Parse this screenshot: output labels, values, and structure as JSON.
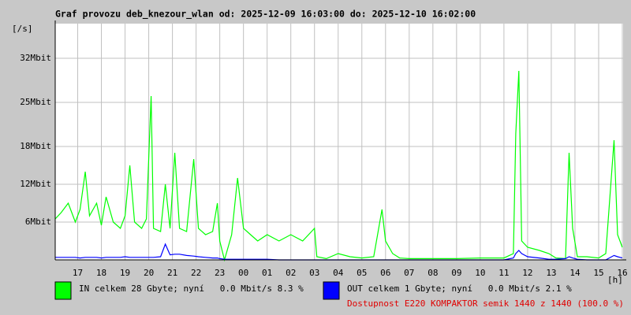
{
  "chart_data": {
    "type": "line",
    "title": "Graf provozu deb_knezour_wlan od: 2025-12-09 16:03:00 do: 2025-12-10 16:02:00",
    "y_label": "[/s]",
    "x_label": "[h]",
    "ylim": [
      0,
      37.5
    ],
    "yticks": [
      {
        "value": 6,
        "label": "6Mbit"
      },
      {
        "value": 12,
        "label": "12Mbit"
      },
      {
        "value": 18,
        "label": "18Mbit"
      },
      {
        "value": 25,
        "label": "25Mbit"
      },
      {
        "value": 32,
        "label": "32Mbit"
      }
    ],
    "xlim": [
      16.05,
      40.0333
    ],
    "xticks": [
      17,
      18,
      19,
      20,
      21,
      22,
      23,
      {
        "value": 24,
        "label": "00"
      },
      {
        "value": 25,
        "label": "01"
      },
      {
        "value": 26,
        "label": "02"
      },
      {
        "value": 27,
        "label": "03"
      },
      {
        "value": 28,
        "label": "04"
      },
      {
        "value": 29,
        "label": "05"
      },
      {
        "value": 30,
        "label": "06"
      },
      {
        "value": 31,
        "label": "07"
      },
      {
        "value": 32,
        "label": "08"
      },
      {
        "value": 33,
        "label": "09"
      },
      {
        "value": 34,
        "label": "10"
      },
      {
        "value": 35,
        "label": "11"
      },
      {
        "value": 36,
        "label": "12"
      },
      {
        "value": 37,
        "label": "13"
      },
      {
        "value": 38,
        "label": "14"
      },
      {
        "value": 39,
        "label": "15"
      },
      {
        "value": 40,
        "label": "16"
      }
    ],
    "grid": true,
    "x": [
      16.05,
      16.3,
      16.6,
      16.9,
      17.1,
      17.32,
      17.5,
      17.8,
      18.0,
      18.2,
      18.5,
      18.8,
      19.0,
      19.2,
      19.4,
      19.7,
      19.9,
      20.1,
      20.2,
      20.5,
      20.7,
      20.9,
      21.1,
      21.3,
      21.6,
      21.9,
      22.1,
      22.4,
      22.7,
      22.9,
      23.0,
      23.2,
      23.5,
      23.75,
      24.0,
      24.3,
      24.6,
      25.0,
      25.5,
      26.0,
      26.5,
      27.0,
      27.1,
      27.5,
      28.0,
      28.5,
      29.0,
      29.5,
      29.85,
      30.0,
      30.3,
      30.6,
      31.0,
      32.0,
      33.0,
      34.0,
      35.0,
      35.4,
      35.5,
      35.63,
      35.75,
      36.0,
      36.5,
      36.9,
      37.2,
      37.6,
      37.75,
      37.9,
      38.1,
      38.5,
      39.0,
      39.3,
      39.65,
      39.8,
      40.0
    ],
    "series": [
      {
        "name": "IN celkem 28 Gbyte; nyní   0.0 Mbit/s 8.3 %",
        "color": "#00ff00",
        "values": [
          6.5,
          7.5,
          9,
          6,
          8,
          14,
          7,
          9,
          5.5,
          10,
          6,
          5,
          7,
          15,
          6,
          5,
          6.5,
          26,
          5,
          4.5,
          12,
          5,
          17,
          5,
          4.5,
          16,
          5,
          4,
          4.5,
          9,
          3,
          0,
          4,
          13,
          5,
          4,
          3,
          4,
          3,
          4,
          3,
          5,
          0.5,
          0.2,
          1,
          0.5,
          0.3,
          0.5,
          8,
          3,
          1,
          0.3,
          0.2,
          0.2,
          0.2,
          0.3,
          0.3,
          1,
          20,
          30,
          3,
          2,
          1.5,
          1,
          0.3,
          0.2,
          17,
          5,
          0.5,
          0.5,
          0.3,
          1,
          19,
          4,
          2
        ]
      },
      {
        "name": "OUT celkem 1 Gbyte; nyní   0.0 Mbit/s 2.1 %",
        "color": "#0000ff",
        "values": [
          0.4,
          0.4,
          0.4,
          0.4,
          0.3,
          0.4,
          0.4,
          0.4,
          0.3,
          0.4,
          0.4,
          0.4,
          0.5,
          0.4,
          0.4,
          0.4,
          0.4,
          0.4,
          0.4,
          0.5,
          2.5,
          0.8,
          0.9,
          0.9,
          0.7,
          0.6,
          0.5,
          0.4,
          0.3,
          0.3,
          0.2,
          0.1,
          0.1,
          0.1,
          0.1,
          0.1,
          0.1,
          0.1,
          0,
          0,
          0,
          0,
          0,
          0,
          0,
          0,
          0,
          0,
          0,
          0,
          0,
          0,
          0,
          0,
          0,
          0,
          0,
          0.3,
          1,
          1.5,
          1,
          0.5,
          0.3,
          0.1,
          0.1,
          0.2,
          0.5,
          0.3,
          0.1,
          0,
          0,
          0,
          0.7,
          0.5,
          0.3
        ]
      }
    ],
    "annotation": "Dostupnost E220 KOMPAKTOR semik 1440 z 1440 (100.0 %)"
  }
}
